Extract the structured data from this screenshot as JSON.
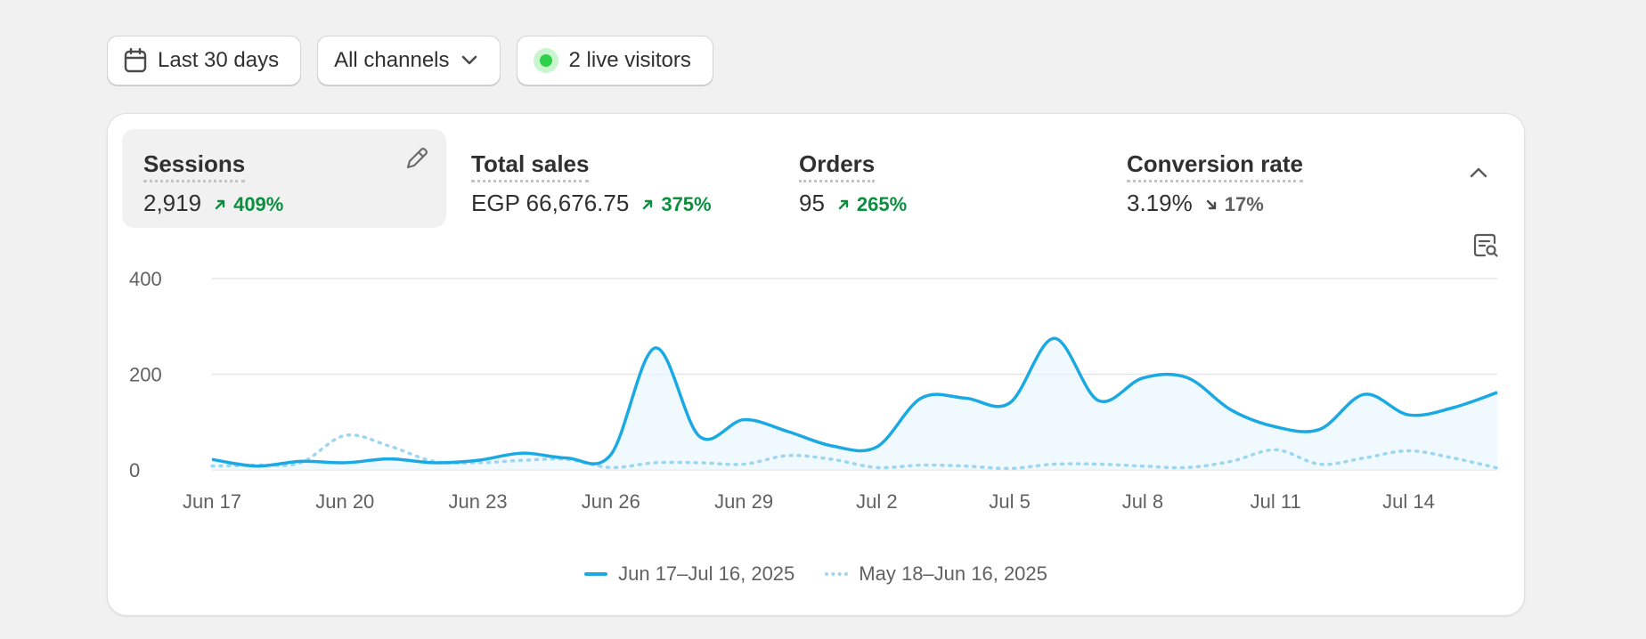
{
  "filters": {
    "date_label": "Last 30 days",
    "channel_label": "All channels",
    "live_label": "2 live visitors"
  },
  "icons": {
    "calendar": "calendar-icon",
    "chevron": "chevron-down-icon",
    "live": "live-status-dot",
    "edit": "pencil-icon",
    "collapse": "chevron-up-icon",
    "explore": "explore-report-icon",
    "arrow_up": "arrow-up-right-icon",
    "arrow_down": "arrow-down-right-icon"
  },
  "metrics": [
    {
      "label": "Sessions",
      "value": "2,919",
      "change": "409%",
      "direction": "up",
      "active": true
    },
    {
      "label": "Total sales",
      "value": "EGP 66,676.75",
      "change": "375%",
      "direction": "up",
      "active": false
    },
    {
      "label": "Orders",
      "value": "95",
      "change": "265%",
      "direction": "up",
      "active": false
    },
    {
      "label": "Conversion rate",
      "value": "3.19%",
      "change": "17%",
      "direction": "down",
      "active": false
    }
  ],
  "colors": {
    "current_line": "#1aa9e3",
    "previous_line": "#9dd6f0",
    "positive": "#0a8f3f",
    "neutral": "#616161",
    "live_dot": "#2fd14a"
  },
  "chart_data": {
    "type": "line",
    "y_ticks": [
      "400",
      "200",
      "0"
    ],
    "ylim": [
      0,
      400
    ],
    "x_ticks": [
      "Jun 17",
      "Jun 20",
      "Jun 23",
      "Jun 26",
      "Jun 29",
      "Jul 2",
      "Jul 5",
      "Jul 8",
      "Jul 11",
      "Jul 14"
    ],
    "grid": true,
    "legend_position": "bottom-center",
    "series": [
      {
        "name": "Jun 17–Jul 16, 2025",
        "style": "solid",
        "values": [
          22,
          8,
          18,
          15,
          23,
          15,
          20,
          35,
          25,
          32,
          255,
          70,
          105,
          80,
          50,
          48,
          150,
          150,
          140,
          275,
          145,
          192,
          193,
          125,
          90,
          85,
          158,
          115,
          130,
          162
        ]
      },
      {
        "name": "May 18–Jun 16, 2025",
        "style": "dotted",
        "values": [
          8,
          10,
          15,
          72,
          50,
          18,
          15,
          20,
          22,
          5,
          15,
          15,
          12,
          30,
          22,
          5,
          10,
          8,
          3,
          12,
          12,
          8,
          5,
          18,
          42,
          12,
          25,
          40,
          25,
          4
        ]
      }
    ]
  }
}
